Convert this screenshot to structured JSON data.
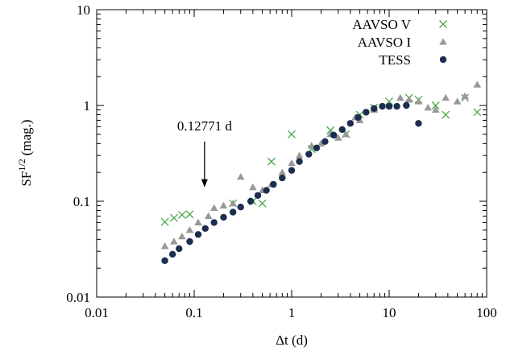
{
  "chart_data": {
    "type": "scatter",
    "xscale": "log",
    "yscale": "log",
    "xlim": [
      0.01,
      100
    ],
    "ylim": [
      0.01,
      10
    ],
    "xlabel": "Δt (d)",
    "ylabel_base": "SF",
    "ylabel_sup": "1/2",
    "ylabel_unit": "(mag.)",
    "x_ticks": [
      {
        "value": 0.01,
        "label": "0.01"
      },
      {
        "value": 0.1,
        "label": "0.1"
      },
      {
        "value": 1,
        "label": "1"
      },
      {
        "value": 10,
        "label": "10"
      },
      {
        "value": 100,
        "label": "100"
      }
    ],
    "y_ticks": [
      {
        "value": 0.01,
        "label": "0.01"
      },
      {
        "value": 0.1,
        "label": "0.1"
      },
      {
        "value": 1,
        "label": "1"
      },
      {
        "value": 10,
        "label": "10"
      }
    ],
    "grid": false,
    "legend_position": "top-right",
    "annotation": {
      "text": "0.12771 d",
      "x": 0.12771,
      "arrow_from_y": 0.42,
      "arrow_to_y": 0.14
    },
    "series": [
      {
        "name": "AAVSO V",
        "marker": "cross",
        "color": "#4aa84a",
        "points": [
          [
            0.05,
            0.061
          ],
          [
            0.062,
            0.067
          ],
          [
            0.075,
            0.072
          ],
          [
            0.09,
            0.073
          ],
          [
            0.25,
            0.095
          ],
          [
            0.4,
            0.1
          ],
          [
            0.5,
            0.095
          ],
          [
            0.62,
            0.26
          ],
          [
            1.0,
            0.5
          ],
          [
            1.6,
            0.35
          ],
          [
            2.5,
            0.55
          ],
          [
            3.6,
            0.5
          ],
          [
            5.0,
            0.8
          ],
          [
            7.0,
            0.95
          ],
          [
            10.0,
            1.1
          ],
          [
            16.0,
            1.2
          ],
          [
            20.0,
            1.15
          ],
          [
            30.0,
            1.0
          ],
          [
            38.0,
            0.8
          ],
          [
            60.0,
            1.2
          ],
          [
            80.0,
            0.85
          ]
        ]
      },
      {
        "name": "AAVSO I",
        "marker": "triangle",
        "color": "#999999",
        "points": [
          [
            0.05,
            0.034
          ],
          [
            0.062,
            0.038
          ],
          [
            0.075,
            0.043
          ],
          [
            0.09,
            0.05
          ],
          [
            0.11,
            0.06
          ],
          [
            0.14,
            0.07
          ],
          [
            0.16,
            0.085
          ],
          [
            0.2,
            0.09
          ],
          [
            0.25,
            0.095
          ],
          [
            0.3,
            0.18
          ],
          [
            0.4,
            0.14
          ],
          [
            0.5,
            0.13
          ],
          [
            0.62,
            0.15
          ],
          [
            0.8,
            0.2
          ],
          [
            1.0,
            0.25
          ],
          [
            1.2,
            0.3
          ],
          [
            1.6,
            0.38
          ],
          [
            2.0,
            0.4
          ],
          [
            2.5,
            0.5
          ],
          [
            3.0,
            0.46
          ],
          [
            3.6,
            0.5
          ],
          [
            4.5,
            0.75
          ],
          [
            5.0,
            0.7
          ],
          [
            7.0,
            0.9
          ],
          [
            10.0,
            1.0
          ],
          [
            13.0,
            1.2
          ],
          [
            16.0,
            1.15
          ],
          [
            20.0,
            1.1
          ],
          [
            25.0,
            0.95
          ],
          [
            30.0,
            0.9
          ],
          [
            38.0,
            1.2
          ],
          [
            50.0,
            1.1
          ],
          [
            60.0,
            1.25
          ],
          [
            80.0,
            1.65
          ]
        ]
      },
      {
        "name": "TESS",
        "marker": "circle",
        "color": "#1c2e4e",
        "points": [
          [
            0.05,
            0.024
          ],
          [
            0.06,
            0.028
          ],
          [
            0.07,
            0.032
          ],
          [
            0.09,
            0.038
          ],
          [
            0.11,
            0.045
          ],
          [
            0.13,
            0.052
          ],
          [
            0.16,
            0.06
          ],
          [
            0.2,
            0.068
          ],
          [
            0.25,
            0.077
          ],
          [
            0.3,
            0.087
          ],
          [
            0.38,
            0.1
          ],
          [
            0.45,
            0.115
          ],
          [
            0.55,
            0.13
          ],
          [
            0.65,
            0.15
          ],
          [
            0.8,
            0.175
          ],
          [
            1.0,
            0.21
          ],
          [
            1.2,
            0.26
          ],
          [
            1.5,
            0.31
          ],
          [
            1.8,
            0.36
          ],
          [
            2.2,
            0.42
          ],
          [
            2.7,
            0.49
          ],
          [
            3.3,
            0.56
          ],
          [
            4.0,
            0.65
          ],
          [
            4.8,
            0.75
          ],
          [
            5.8,
            0.85
          ],
          [
            7.0,
            0.93
          ],
          [
            8.5,
            0.98
          ],
          [
            10.0,
            0.98
          ],
          [
            12.0,
            0.98
          ],
          [
            15.0,
            1.0
          ],
          [
            20.0,
            0.65
          ]
        ]
      }
    ]
  }
}
